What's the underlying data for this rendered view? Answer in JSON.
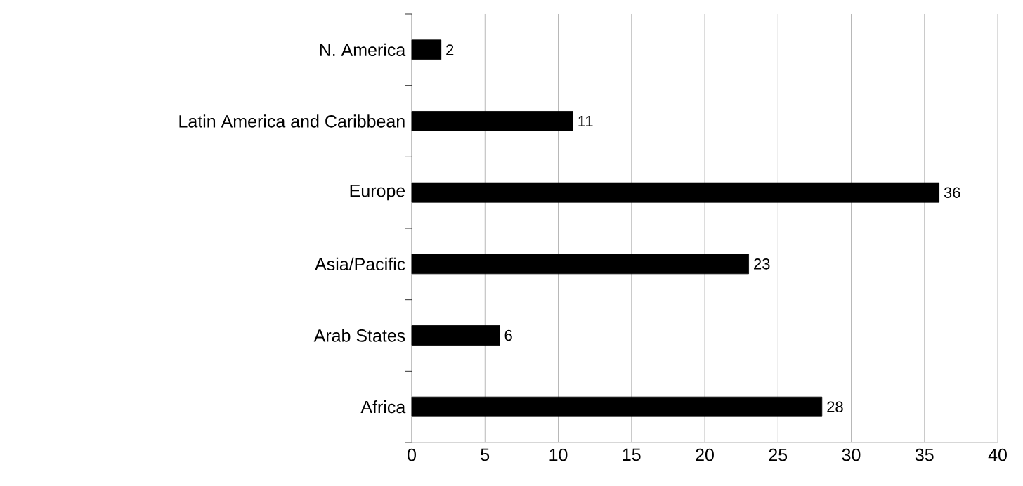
{
  "chart_data": {
    "type": "bar",
    "orientation": "horizontal",
    "categories": [
      "N. America",
      "Latin America and Caribbean",
      "Europe",
      "Asia/Pacific",
      "Arab States",
      "Africa"
    ],
    "values": [
      2,
      11,
      36,
      23,
      6,
      28
    ],
    "color": "#000000",
    "xlim": [
      0,
      40
    ],
    "xticks": [
      0,
      5,
      10,
      15,
      20,
      25,
      30,
      35,
      40
    ],
    "grid": "x",
    "data_labels": true
  }
}
